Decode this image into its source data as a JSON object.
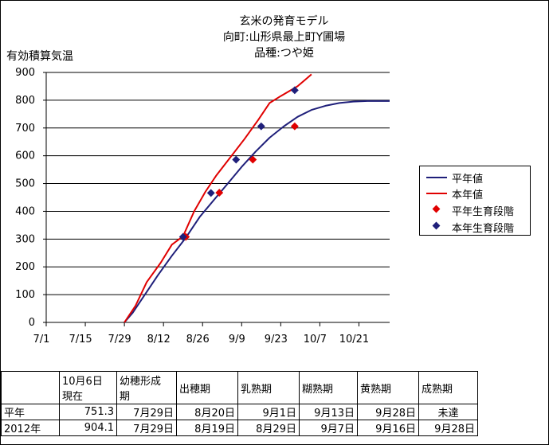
{
  "title": {
    "line1": "玄米の発育モデル",
    "line2": "向町:山形県最上町Y圃場",
    "line3": "品種:つや姫"
  },
  "colors": {
    "normal": "#1f1f7a",
    "current": "#e00000"
  },
  "chart_data": {
    "type": "line",
    "ylabel": "有効積算気温",
    "ylim": [
      0,
      900
    ],
    "yticks": [
      0,
      100,
      200,
      300,
      400,
      500,
      600,
      700,
      800,
      900
    ],
    "xlim": [
      "7/1",
      "11/1"
    ],
    "xticks": [
      "7/1",
      "7/15",
      "7/29",
      "8/12",
      "8/26",
      "9/9",
      "9/23",
      "10/7",
      "10/21"
    ],
    "grid": "horizontal",
    "legend_position": "right",
    "series": [
      {
        "name": "平年値",
        "kind": "line",
        "color": "#1f1f7a",
        "points": [
          [
            "7/29",
            0
          ],
          [
            "8/1",
            35
          ],
          [
            "8/5",
            95
          ],
          [
            "8/10",
            170
          ],
          [
            "8/15",
            240
          ],
          [
            "8/20",
            305
          ],
          [
            "8/25",
            380
          ],
          [
            "8/30",
            440
          ],
          [
            "9/4",
            500
          ],
          [
            "9/9",
            560
          ],
          [
            "9/14",
            615
          ],
          [
            "9/19",
            665
          ],
          [
            "9/24",
            705
          ],
          [
            "9/29",
            740
          ],
          [
            "10/4",
            765
          ],
          [
            "10/9",
            780
          ],
          [
            "10/14",
            790
          ],
          [
            "10/19",
            795
          ],
          [
            "10/24",
            797
          ],
          [
            "11/1",
            797
          ]
        ]
      },
      {
        "name": "本年値",
        "kind": "line",
        "color": "#e00000",
        "points": [
          [
            "7/29",
            0
          ],
          [
            "8/2",
            60
          ],
          [
            "8/6",
            145
          ],
          [
            "8/11",
            215
          ],
          [
            "8/15",
            280
          ],
          [
            "8/19",
            310
          ],
          [
            "8/23",
            400
          ],
          [
            "8/27",
            470
          ],
          [
            "8/31",
            530
          ],
          [
            "9/5",
            595
          ],
          [
            "9/10",
            660
          ],
          [
            "9/15",
            730
          ],
          [
            "9/19",
            790
          ],
          [
            "9/23",
            815
          ],
          [
            "9/29",
            850
          ],
          [
            "10/4",
            893
          ]
        ]
      },
      {
        "name": "平年生育段階",
        "kind": "marker",
        "color": "#e00000",
        "points": [
          [
            "8/20",
            308
          ],
          [
            "9/1",
            467
          ],
          [
            "9/13",
            586
          ],
          [
            "9/28",
            706
          ]
        ]
      },
      {
        "name": "本年生育段階",
        "kind": "marker",
        "color": "#1f1f7a",
        "points": [
          [
            "8/19",
            308
          ],
          [
            "8/29",
            466
          ],
          [
            "9/7",
            586
          ],
          [
            "9/16",
            706
          ],
          [
            "9/28",
            836
          ]
        ]
      }
    ]
  },
  "table": {
    "header": [
      "",
      "10月6日\n現在",
      "幼穂形成\n期",
      "出穂期",
      "乳熟期",
      "糊熟期",
      "黄熟期",
      "成熟期"
    ],
    "rows": [
      [
        "平年",
        "751.3",
        "7月29日",
        "8月20日",
        "9月1日",
        "9月13日",
        "9月28日",
        "未達"
      ],
      [
        "2012年",
        "904.1",
        "7月29日",
        "8月19日",
        "8月29日",
        "9月7日",
        "9月16日",
        "9月28日"
      ]
    ]
  }
}
